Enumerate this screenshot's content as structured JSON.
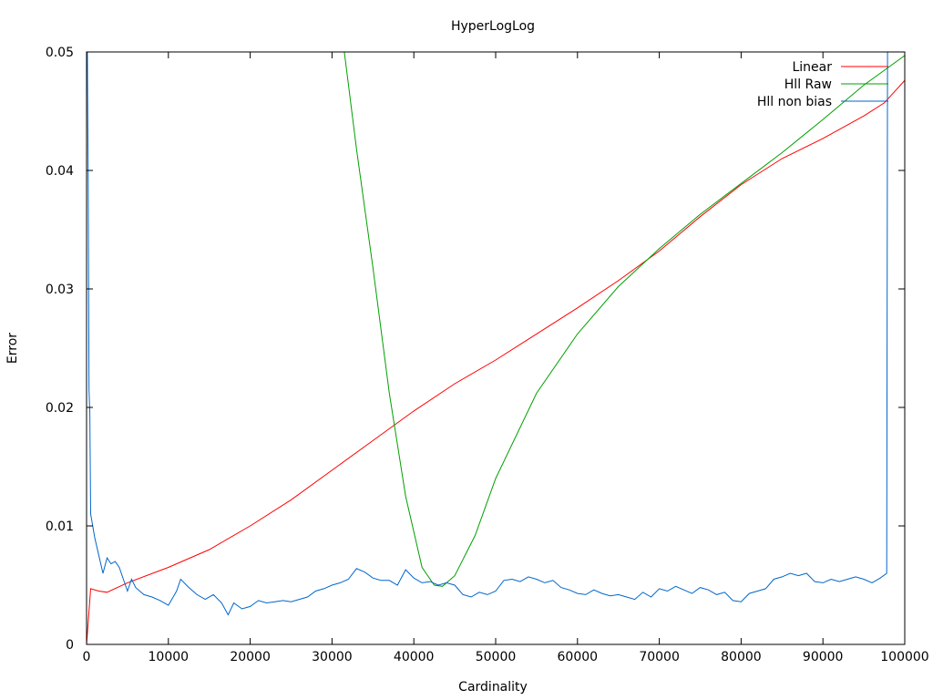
{
  "chart_data": {
    "type": "line",
    "title": "HyperLogLog",
    "xlabel": "Cardinality",
    "ylabel": "Error",
    "xlim": [
      0,
      100000
    ],
    "ylim": [
      0,
      0.05
    ],
    "grid": false,
    "legend_position": "top-right",
    "x_ticks": [
      {
        "value": 0,
        "label": "0"
      },
      {
        "value": 10000,
        "label": "10000"
      },
      {
        "value": 20000,
        "label": "20000"
      },
      {
        "value": 30000,
        "label": "30000"
      },
      {
        "value": 40000,
        "label": "40000"
      },
      {
        "value": 50000,
        "label": "50000"
      },
      {
        "value": 60000,
        "label": "60000"
      },
      {
        "value": 70000,
        "label": "70000"
      },
      {
        "value": 80000,
        "label": "80000"
      },
      {
        "value": 90000,
        "label": "90000"
      },
      {
        "value": 100000,
        "label": "100000"
      }
    ],
    "y_ticks": [
      {
        "value": 0,
        "label": "0"
      },
      {
        "value": 0.01,
        "label": "0.01"
      },
      {
        "value": 0.02,
        "label": "0.02"
      },
      {
        "value": 0.03,
        "label": "0.03"
      },
      {
        "value": 0.04,
        "label": "0.04"
      },
      {
        "value": 0.05,
        "label": "0.05"
      }
    ],
    "series": [
      {
        "name": "Linear",
        "color": "#ff0000",
        "points": [
          [
            0,
            0.0
          ],
          [
            500,
            0.0047
          ],
          [
            1500,
            0.0045
          ],
          [
            2500,
            0.0044
          ],
          [
            5000,
            0.0052
          ],
          [
            10000,
            0.0065
          ],
          [
            15000,
            0.008
          ],
          [
            20000,
            0.01
          ],
          [
            25000,
            0.0122
          ],
          [
            30000,
            0.0147
          ],
          [
            35000,
            0.0172
          ],
          [
            40000,
            0.0197
          ],
          [
            45000,
            0.022
          ],
          [
            50000,
            0.024
          ],
          [
            55000,
            0.0262
          ],
          [
            60000,
            0.0284
          ],
          [
            65000,
            0.0307
          ],
          [
            70000,
            0.0332
          ],
          [
            75000,
            0.0361
          ],
          [
            80000,
            0.0388
          ],
          [
            85000,
            0.041
          ],
          [
            90000,
            0.0427
          ],
          [
            95000,
            0.0446
          ],
          [
            97500,
            0.0457
          ],
          [
            100000,
            0.0476
          ]
        ]
      },
      {
        "name": "Hll Raw",
        "color": "#00a000",
        "points": [
          [
            31500,
            0.05
          ],
          [
            33000,
            0.0418
          ],
          [
            35000,
            0.0318
          ],
          [
            37000,
            0.0212
          ],
          [
            39000,
            0.0125
          ],
          [
            41000,
            0.0065
          ],
          [
            42500,
            0.005
          ],
          [
            43500,
            0.0049
          ],
          [
            45000,
            0.0058
          ],
          [
            47500,
            0.0092
          ],
          [
            50000,
            0.014
          ],
          [
            55000,
            0.0212
          ],
          [
            60000,
            0.0262
          ],
          [
            65000,
            0.0302
          ],
          [
            70000,
            0.0334
          ],
          [
            75000,
            0.0363
          ],
          [
            80000,
            0.0389
          ],
          [
            85000,
            0.0415
          ],
          [
            90000,
            0.0443
          ],
          [
            95000,
            0.0472
          ],
          [
            100000,
            0.0497
          ]
        ]
      },
      {
        "name": "Hll non bias",
        "color": "#0066cc",
        "points": [
          [
            100,
            0.05
          ],
          [
            200,
            0.039
          ],
          [
            300,
            0.0215
          ],
          [
            400,
            0.0195
          ],
          [
            500,
            0.011
          ],
          [
            1000,
            0.009
          ],
          [
            1500,
            0.0075
          ],
          [
            2000,
            0.006
          ],
          [
            2500,
            0.0073
          ],
          [
            3000,
            0.0068
          ],
          [
            3500,
            0.007
          ],
          [
            4000,
            0.0065
          ],
          [
            4500,
            0.0055
          ],
          [
            5000,
            0.0045
          ],
          [
            5500,
            0.0055
          ],
          [
            6000,
            0.0048
          ],
          [
            7000,
            0.0042
          ],
          [
            8000,
            0.004
          ],
          [
            9000,
            0.0037
          ],
          [
            10000,
            0.0033
          ],
          [
            11000,
            0.0045
          ],
          [
            11500,
            0.0055
          ],
          [
            12500,
            0.0048
          ],
          [
            13500,
            0.0042
          ],
          [
            14500,
            0.0038
          ],
          [
            15500,
            0.0042
          ],
          [
            16500,
            0.0035
          ],
          [
            17300,
            0.0025
          ],
          [
            18000,
            0.0035
          ],
          [
            19000,
            0.003
          ],
          [
            20000,
            0.0032
          ],
          [
            21000,
            0.0037
          ],
          [
            22000,
            0.0035
          ],
          [
            23000,
            0.0036
          ],
          [
            24000,
            0.0037
          ],
          [
            25000,
            0.0036
          ],
          [
            26000,
            0.0038
          ],
          [
            27000,
            0.004
          ],
          [
            28000,
            0.0045
          ],
          [
            29000,
            0.0047
          ],
          [
            30000,
            0.005
          ],
          [
            31000,
            0.0052
          ],
          [
            32000,
            0.0055
          ],
          [
            33000,
            0.0064
          ],
          [
            34000,
            0.0061
          ],
          [
            35000,
            0.0056
          ],
          [
            36000,
            0.0054
          ],
          [
            37000,
            0.0054
          ],
          [
            38000,
            0.005
          ],
          [
            39000,
            0.0063
          ],
          [
            40000,
            0.0056
          ],
          [
            41000,
            0.0052
          ],
          [
            42000,
            0.0053
          ],
          [
            43000,
            0.005
          ],
          [
            44000,
            0.0052
          ],
          [
            45000,
            0.005
          ],
          [
            46000,
            0.0042
          ],
          [
            47000,
            0.004
          ],
          [
            48000,
            0.0044
          ],
          [
            49000,
            0.0042
          ],
          [
            50000,
            0.0045
          ],
          [
            51000,
            0.0054
          ],
          [
            52000,
            0.0055
          ],
          [
            53000,
            0.0053
          ],
          [
            54000,
            0.0057
          ],
          [
            55000,
            0.0055
          ],
          [
            56000,
            0.0052
          ],
          [
            57000,
            0.0054
          ],
          [
            58000,
            0.0048
          ],
          [
            59000,
            0.0046
          ],
          [
            60000,
            0.0043
          ],
          [
            61000,
            0.0042
          ],
          [
            62000,
            0.0046
          ],
          [
            63000,
            0.0043
          ],
          [
            64000,
            0.0041
          ],
          [
            65000,
            0.0042
          ],
          [
            66000,
            0.004
          ],
          [
            67000,
            0.0038
          ],
          [
            68000,
            0.0044
          ],
          [
            69000,
            0.004
          ],
          [
            70000,
            0.0047
          ],
          [
            71000,
            0.0045
          ],
          [
            72000,
            0.0049
          ],
          [
            73000,
            0.0046
          ],
          [
            74000,
            0.0043
          ],
          [
            75000,
            0.0048
          ],
          [
            76000,
            0.0046
          ],
          [
            77000,
            0.0042
          ],
          [
            78000,
            0.0044
          ],
          [
            79000,
            0.0037
          ],
          [
            80000,
            0.0036
          ],
          [
            81000,
            0.0043
          ],
          [
            82000,
            0.0045
          ],
          [
            83000,
            0.0047
          ],
          [
            84000,
            0.0055
          ],
          [
            85000,
            0.0057
          ],
          [
            86000,
            0.006
          ],
          [
            87000,
            0.0058
          ],
          [
            88000,
            0.006
          ],
          [
            89000,
            0.0053
          ],
          [
            90000,
            0.0052
          ],
          [
            91000,
            0.0055
          ],
          [
            92000,
            0.0053
          ],
          [
            93000,
            0.0055
          ],
          [
            94000,
            0.0057
          ],
          [
            95000,
            0.0055
          ],
          [
            96000,
            0.0052
          ],
          [
            97000,
            0.0056
          ],
          [
            97800,
            0.006
          ],
          [
            97900,
            0.05
          ]
        ]
      }
    ]
  }
}
